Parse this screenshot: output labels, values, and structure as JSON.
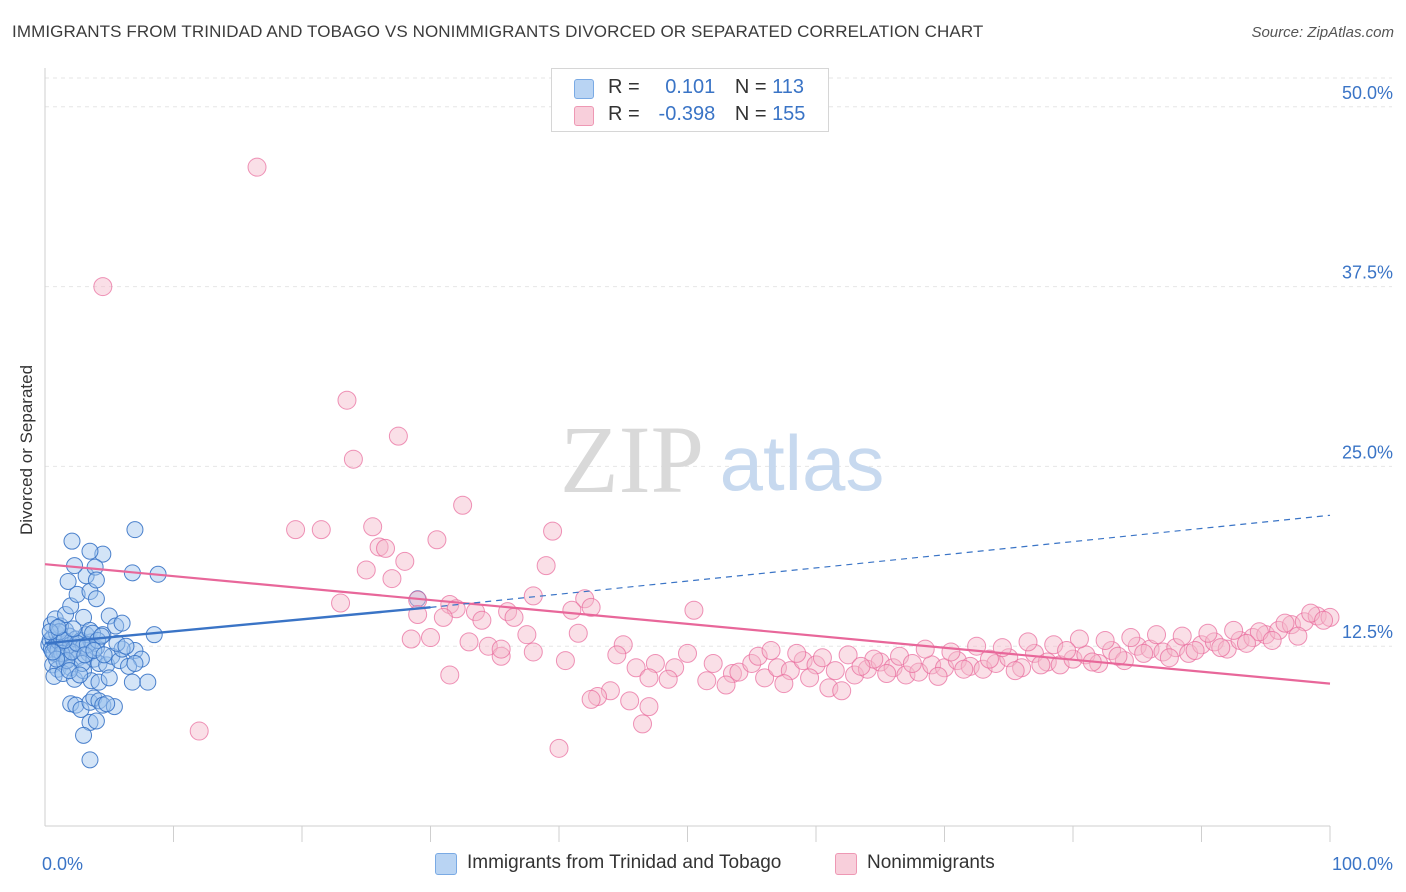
{
  "title": "IMMIGRANTS FROM TRINIDAD AND TOBAGO VS NONIMMIGRANTS DIVORCED OR SEPARATED CORRELATION CHART",
  "source": "Source: ZipAtlas.com",
  "watermark": {
    "zip": "ZIP",
    "atlas": "atlas"
  },
  "legend_top": [
    {
      "r_label": "R =",
      "r_value": "0.101",
      "n_label": "N =",
      "n_value": "113",
      "color": "#9ec4ee"
    },
    {
      "r_label": "R =",
      "r_value": "-0.398",
      "n_label": "N =",
      "n_value": "155",
      "color": "#f4b8c9"
    }
  ],
  "legend_bottom": [
    {
      "label": "Immigrants from Trinidad and Tobago",
      "color": "#9ec4ee"
    },
    {
      "label": "Nonimmigrants",
      "color": "#f4b8c9"
    }
  ],
  "chart_data": {
    "type": "scatter",
    "title": "IMMIGRANTS FROM TRINIDAD AND TOBAGO VS NONIMMIGRANTS DIVORCED OR SEPARATED CORRELATION CHART",
    "xlabel": "",
    "ylabel": "Divorced or Separated",
    "xlim": [
      0,
      100
    ],
    "ylim": [
      0,
      52
    ],
    "x_tick_labels": [
      "0.0%",
      "100.0%"
    ],
    "y_ticks": [
      12.5,
      25.0,
      37.5,
      50.0
    ],
    "y_tick_labels": [
      "12.5%",
      "25.0%",
      "37.5%",
      "50.0%"
    ],
    "grid": true,
    "legend_placement": "top-center",
    "series": [
      {
        "name": "Immigrants from Trinidad and Tobago",
        "color": "#3a74c6",
        "fill": "#9ec4ee",
        "trend": {
          "x": [
            0,
            30
          ],
          "y": [
            12.7,
            15.2
          ]
        },
        "trend_extension": {
          "x": [
            30,
            100
          ],
          "y": [
            15.2,
            21.6
          ]
        },
        "points": [
          [
            0.3,
            12.6
          ],
          [
            0.4,
            12.9
          ],
          [
            0.5,
            12.3
          ],
          [
            0.6,
            13.1
          ],
          [
            0.7,
            12.0
          ],
          [
            0.8,
            12.5
          ],
          [
            0.9,
            13.4
          ],
          [
            1.0,
            12.2
          ],
          [
            1.1,
            12.8
          ],
          [
            1.2,
            11.8
          ],
          [
            1.3,
            13.0
          ],
          [
            1.4,
            12.4
          ],
          [
            1.5,
            12.1
          ],
          [
            1.6,
            13.6
          ],
          [
            1.7,
            12.7
          ],
          [
            1.8,
            11.9
          ],
          [
            1.9,
            13.2
          ],
          [
            2.0,
            12.6
          ],
          [
            2.2,
            12.3
          ],
          [
            2.4,
            13.0
          ],
          [
            2.6,
            11.7
          ],
          [
            2.8,
            12.9
          ],
          [
            3.0,
            12.5
          ],
          [
            3.2,
            13.3
          ],
          [
            3.4,
            12.0
          ],
          [
            3.6,
            12.8
          ],
          [
            3.8,
            11.6
          ],
          [
            4.0,
            12.4
          ],
          [
            0.5,
            14.0
          ],
          [
            0.8,
            14.4
          ],
          [
            1.2,
            13.9
          ],
          [
            1.6,
            14.7
          ],
          [
            0.6,
            11.2
          ],
          [
            1.0,
            10.9
          ],
          [
            1.5,
            11.4
          ],
          [
            2.0,
            11.0
          ],
          [
            0.7,
            10.4
          ],
          [
            1.4,
            10.6
          ],
          [
            2.3,
            10.2
          ],
          [
            3.0,
            10.8
          ],
          [
            2.0,
            15.3
          ],
          [
            2.5,
            16.1
          ],
          [
            1.8,
            17.0
          ],
          [
            3.5,
            16.3
          ],
          [
            4.0,
            15.8
          ],
          [
            3.2,
            17.4
          ],
          [
            2.3,
            18.1
          ],
          [
            4.5,
            18.9
          ],
          [
            3.5,
            19.1
          ],
          [
            2.1,
            19.8
          ],
          [
            3.9,
            18.0
          ],
          [
            4.0,
            17.1
          ],
          [
            7.0,
            20.6
          ],
          [
            6.8,
            17.6
          ],
          [
            3.0,
            14.5
          ],
          [
            3.5,
            13.6
          ],
          [
            4.5,
            13.3
          ],
          [
            5.0,
            14.6
          ],
          [
            5.5,
            13.9
          ],
          [
            6.0,
            14.1
          ],
          [
            7.0,
            12.2
          ],
          [
            7.5,
            11.6
          ],
          [
            4.2,
            11.3
          ],
          [
            4.8,
            11.2
          ],
          [
            5.2,
            11.8
          ],
          [
            5.8,
            11.5
          ],
          [
            6.5,
            11.1
          ],
          [
            6.0,
            12.3
          ],
          [
            3.6,
            10.1
          ],
          [
            4.2,
            10.0
          ],
          [
            5.0,
            10.3
          ],
          [
            6.8,
            10.0
          ],
          [
            7.0,
            11.3
          ],
          [
            2.0,
            8.5
          ],
          [
            2.4,
            8.4
          ],
          [
            2.8,
            8.1
          ],
          [
            3.5,
            8.6
          ],
          [
            3.8,
            8.9
          ],
          [
            4.2,
            8.7
          ],
          [
            4.5,
            8.4
          ],
          [
            3.5,
            7.2
          ],
          [
            3.0,
            6.3
          ],
          [
            3.5,
            4.6
          ],
          [
            4.0,
            7.3
          ],
          [
            5.4,
            8.3
          ],
          [
            4.8,
            8.5
          ],
          [
            8.0,
            10.0
          ],
          [
            8.5,
            13.3
          ],
          [
            8.8,
            17.5
          ],
          [
            29.0,
            15.8
          ],
          [
            1.1,
            13.5
          ],
          [
            1.3,
            12.0
          ],
          [
            1.7,
            11.5
          ],
          [
            2.1,
            12.1
          ],
          [
            2.5,
            12.7
          ],
          [
            2.9,
            11.3
          ],
          [
            3.3,
            12.6
          ],
          [
            3.7,
            13.4
          ],
          [
            4.1,
            12.9
          ],
          [
            4.4,
            13.2
          ],
          [
            0.9,
            11.6
          ],
          [
            1.9,
            10.8
          ],
          [
            2.7,
            10.5
          ],
          [
            3.1,
            11.9
          ],
          [
            0.4,
            13.5
          ],
          [
            0.6,
            12.1
          ],
          [
            1.5,
            12.9
          ],
          [
            2.2,
            13.7
          ],
          [
            3.8,
            12.2
          ],
          [
            4.6,
            11.9
          ],
          [
            5.6,
            12.7
          ],
          [
            6.3,
            12.5
          ],
          [
            1.0,
            13.8
          ]
        ]
      },
      {
        "name": "Nonimmigrants",
        "color": "#e8679a",
        "fill": "#f4b8c9",
        "trend": {
          "x": [
            0,
            100
          ],
          "y": [
            18.2,
            9.9
          ]
        },
        "points": [
          [
            16.5,
            45.8
          ],
          [
            4.5,
            37.5
          ],
          [
            23.5,
            29.6
          ],
          [
            27.5,
            27.1
          ],
          [
            24.0,
            25.5
          ],
          [
            32.5,
            22.3
          ],
          [
            19.5,
            20.6
          ],
          [
            21.5,
            20.6
          ],
          [
            25.5,
            20.8
          ],
          [
            30.5,
            19.9
          ],
          [
            39.5,
            20.5
          ],
          [
            26.0,
            19.4
          ],
          [
            26.5,
            19.3
          ],
          [
            28.0,
            18.4
          ],
          [
            25.0,
            17.8
          ],
          [
            27.0,
            17.2
          ],
          [
            39.0,
            18.1
          ],
          [
            38.0,
            16.0
          ],
          [
            42.0,
            15.8
          ],
          [
            23.0,
            15.5
          ],
          [
            29.0,
            15.7
          ],
          [
            31.5,
            15.4
          ],
          [
            32.0,
            15.1
          ],
          [
            36.0,
            14.9
          ],
          [
            41.0,
            15.0
          ],
          [
            42.5,
            15.2
          ],
          [
            36.5,
            14.5
          ],
          [
            31.0,
            14.5
          ],
          [
            50.5,
            15.0
          ],
          [
            41.5,
            13.4
          ],
          [
            28.5,
            13.0
          ],
          [
            33.0,
            12.8
          ],
          [
            34.5,
            12.5
          ],
          [
            35.5,
            11.8
          ],
          [
            38.0,
            12.1
          ],
          [
            40.5,
            11.5
          ],
          [
            45.0,
            12.6
          ],
          [
            47.5,
            11.3
          ],
          [
            49.0,
            11.0
          ],
          [
            50.0,
            12.0
          ],
          [
            52.0,
            11.3
          ],
          [
            53.5,
            10.6
          ],
          [
            44.5,
            11.9
          ],
          [
            46.0,
            11.0
          ],
          [
            47.0,
            10.3
          ],
          [
            48.5,
            10.2
          ],
          [
            51.5,
            10.1
          ],
          [
            54.0,
            10.7
          ],
          [
            55.0,
            11.3
          ],
          [
            56.0,
            10.3
          ],
          [
            57.0,
            11.0
          ],
          [
            58.0,
            10.8
          ],
          [
            59.0,
            11.5
          ],
          [
            60.0,
            11.2
          ],
          [
            61.0,
            9.6
          ],
          [
            62.0,
            9.4
          ],
          [
            63.0,
            10.5
          ],
          [
            64.0,
            10.9
          ],
          [
            65.0,
            11.4
          ],
          [
            66.0,
            11.0
          ],
          [
            67.0,
            10.5
          ],
          [
            68.0,
            10.7
          ],
          [
            69.0,
            11.2
          ],
          [
            70.0,
            11.0
          ],
          [
            71.0,
            11.5
          ],
          [
            72.0,
            11.1
          ],
          [
            73.0,
            10.9
          ],
          [
            74.0,
            11.3
          ],
          [
            75.0,
            11.7
          ],
          [
            76.0,
            11.0
          ],
          [
            77.0,
            12.0
          ],
          [
            78.0,
            11.4
          ],
          [
            79.0,
            11.2
          ],
          [
            80.0,
            11.6
          ],
          [
            81.0,
            11.9
          ],
          [
            82.0,
            11.3
          ],
          [
            83.0,
            12.2
          ],
          [
            84.0,
            11.5
          ],
          [
            85.0,
            12.5
          ],
          [
            86.0,
            12.3
          ],
          [
            87.0,
            12.1
          ],
          [
            88.0,
            12.4
          ],
          [
            89.0,
            12.0
          ],
          [
            90.0,
            12.6
          ],
          [
            91.0,
            12.8
          ],
          [
            92.0,
            12.3
          ],
          [
            93.0,
            12.9
          ],
          [
            94.0,
            13.1
          ],
          [
            95.0,
            13.3
          ],
          [
            96.0,
            13.6
          ],
          [
            97.0,
            14.0
          ],
          [
            98.0,
            14.2
          ],
          [
            99.0,
            14.6
          ],
          [
            100.0,
            14.5
          ],
          [
            44.0,
            9.4
          ],
          [
            43.0,
            9.0
          ],
          [
            42.5,
            8.8
          ],
          [
            45.5,
            8.7
          ],
          [
            47.0,
            8.3
          ],
          [
            46.5,
            7.1
          ],
          [
            40.0,
            5.4
          ],
          [
            31.5,
            10.5
          ],
          [
            35.5,
            12.3
          ],
          [
            37.5,
            13.3
          ],
          [
            33.5,
            14.9
          ],
          [
            34.0,
            14.3
          ],
          [
            12.0,
            6.6
          ],
          [
            30.0,
            13.1
          ],
          [
            29.0,
            14.7
          ],
          [
            55.5,
            11.8
          ],
          [
            56.5,
            12.2
          ],
          [
            58.5,
            12.0
          ],
          [
            60.5,
            11.7
          ],
          [
            62.5,
            11.9
          ],
          [
            64.5,
            11.6
          ],
          [
            66.5,
            11.8
          ],
          [
            68.5,
            12.3
          ],
          [
            70.5,
            12.1
          ],
          [
            72.5,
            12.5
          ],
          [
            74.5,
            12.4
          ],
          [
            76.5,
            12.8
          ],
          [
            78.5,
            12.6
          ],
          [
            80.5,
            13.0
          ],
          [
            82.5,
            12.9
          ],
          [
            84.5,
            13.1
          ],
          [
            86.5,
            13.3
          ],
          [
            88.5,
            13.2
          ],
          [
            90.5,
            13.4
          ],
          [
            92.5,
            13.6
          ],
          [
            94.5,
            13.5
          ],
          [
            96.5,
            14.1
          ],
          [
            98.5,
            14.8
          ],
          [
            57.5,
            9.9
          ],
          [
            59.5,
            10.3
          ],
          [
            61.5,
            10.8
          ],
          [
            63.5,
            11.1
          ],
          [
            65.5,
            10.6
          ],
          [
            67.5,
            11.3
          ],
          [
            69.5,
            10.4
          ],
          [
            71.5,
            10.9
          ],
          [
            73.5,
            11.6
          ],
          [
            75.5,
            10.8
          ],
          [
            77.5,
            11.2
          ],
          [
            79.5,
            12.2
          ],
          [
            81.5,
            11.4
          ],
          [
            83.5,
            11.8
          ],
          [
            85.5,
            12.0
          ],
          [
            87.5,
            11.7
          ],
          [
            89.5,
            12.2
          ],
          [
            91.5,
            12.4
          ],
          [
            93.5,
            12.7
          ],
          [
            95.5,
            12.9
          ],
          [
            97.5,
            13.2
          ],
          [
            99.5,
            14.3
          ],
          [
            53.0,
            9.8
          ]
        ]
      }
    ]
  }
}
